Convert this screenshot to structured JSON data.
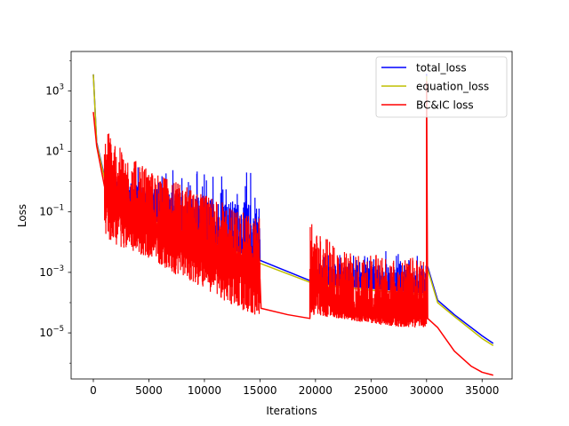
{
  "chart_data": {
    "type": "line",
    "xlabel": "Iterations",
    "ylabel": "Loss",
    "yscale": "log",
    "xlim": [
      -2000,
      37700
    ],
    "ylim": [
      3e-07,
      20000
    ],
    "grid": false,
    "legend_position": "top-right",
    "x_ticks": [
      0,
      5000,
      10000,
      15000,
      20000,
      25000,
      30000,
      35000
    ],
    "x_tick_labels": [
      "0",
      "5000",
      "10000",
      "15000",
      "20000",
      "25000",
      "30000",
      "35000"
    ],
    "y_ticks": [
      1e-05,
      0.001,
      0.1,
      10.0,
      1000.0
    ],
    "y_tick_bases": [
      "10",
      "10",
      "10",
      "10",
      "10"
    ],
    "y_tick_exponents": [
      "−5",
      "−3",
      "−1",
      "1",
      "3"
    ],
    "series": [
      {
        "name": "total_loss",
        "color": "#0000ff",
        "envelope": [
          [
            0,
            3500
          ],
          [
            0,
            3500
          ],
          [
            300,
            20
          ],
          [
            1000,
            1.5
          ],
          [
            2000,
            0.5
          ],
          [
            3000,
            0.2
          ],
          [
            5000,
            0.06
          ],
          [
            7500,
            0.03
          ],
          [
            10000,
            0.012
          ],
          [
            12500,
            0.006
          ],
          [
            15000,
            0.0025
          ],
          [
            20000,
            0.00045
          ],
          [
            25000,
            0.0003
          ],
          [
            30000,
            0.00021
          ],
          [
            30000,
            3500
          ],
          [
            30000,
            0.002
          ],
          [
            31000,
            0.00012
          ],
          [
            32500,
            4e-05
          ],
          [
            35000,
            8e-06
          ],
          [
            36000,
            4.5e-06
          ]
        ],
        "noise_high": [
          [
            1000,
            3.0
          ],
          [
            3000,
            3.5
          ],
          [
            5000,
            3.0
          ],
          [
            7500,
            2.8
          ],
          [
            10000,
            2.6
          ],
          [
            12500,
            2.8
          ],
          [
            15000,
            3.0
          ]
        ],
        "noise_high_band2": [
          [
            19500,
            0.0035
          ],
          [
            22000,
            0.005
          ],
          [
            25000,
            0.006
          ],
          [
            28000,
            0.0045
          ],
          [
            30000,
            0.0035
          ]
        ]
      },
      {
        "name": "equation_loss",
        "color": "#bfbf00",
        "envelope": [
          [
            0,
            3500
          ],
          [
            300,
            18
          ],
          [
            1000,
            1.3
          ],
          [
            2000,
            0.45
          ],
          [
            3000,
            0.18
          ],
          [
            5000,
            0.05
          ],
          [
            7500,
            0.025
          ],
          [
            10000,
            0.01
          ],
          [
            12500,
            0.005
          ],
          [
            15000,
            0.002
          ],
          [
            20000,
            0.0004
          ],
          [
            25000,
            0.00026
          ],
          [
            30000,
            0.00018
          ],
          [
            30000,
            3000
          ],
          [
            30000,
            0.0017
          ],
          [
            31000,
            0.0001
          ],
          [
            32500,
            3.5e-05
          ],
          [
            35000,
            6.5e-06
          ],
          [
            36000,
            3.8e-06
          ]
        ]
      },
      {
        "name": "BC&IC loss",
        "color": "#ff0000",
        "envelope": [
          [
            0,
            200
          ],
          [
            300,
            15
          ],
          [
            1000,
            0.7
          ],
          [
            2000,
            0.2
          ],
          [
            3000,
            0.08
          ],
          [
            5000,
            0.025
          ],
          [
            7500,
            0.01
          ],
          [
            10000,
            0.004
          ],
          [
            12500,
            0.0015
          ],
          [
            15000,
            0.0006
          ],
          [
            15100,
            6.5e-05
          ],
          [
            17500,
            4e-05
          ],
          [
            19500,
            3e-05
          ],
          [
            19500,
            0.0006
          ],
          [
            22000,
            5e-05
          ],
          [
            25000,
            4e-05
          ],
          [
            30000,
            3e-05
          ],
          [
            30000,
            2000
          ],
          [
            30100,
            3e-05
          ],
          [
            31000,
            1.5e-05
          ],
          [
            32500,
            2.5e-06
          ],
          [
            34000,
            8e-07
          ],
          [
            35000,
            5e-07
          ],
          [
            36000,
            4e-07
          ]
        ],
        "noise_low": [
          [
            1000,
            0.01
          ],
          [
            3000,
            0.006
          ],
          [
            5000,
            0.003
          ],
          [
            7500,
            0.0008
          ],
          [
            10000,
            0.0003
          ],
          [
            12500,
            8e-05
          ],
          [
            15000,
            3e-05
          ]
        ],
        "noise_low_band2": [
          [
            19500,
            4e-05
          ],
          [
            22000,
            3e-05
          ],
          [
            25000,
            2e-05
          ],
          [
            28000,
            1.5e-05
          ],
          [
            30000,
            1.5e-05
          ]
        ]
      }
    ]
  }
}
